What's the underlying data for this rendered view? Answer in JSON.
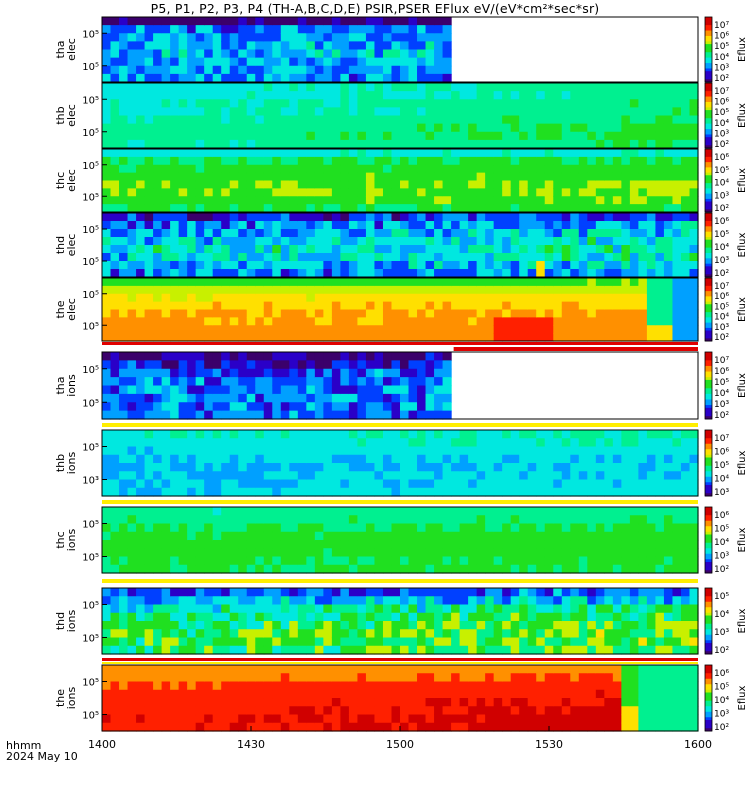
{
  "title": "P5, P1, P2, P3, P4 (TH-A,B,C,D,E) PSIR,PSER EFlux eV/(eV*cm²*sec*sr)",
  "footer": {
    "line1": "hhmm",
    "line2": "2024 May 10"
  },
  "colors": {
    "colormap": [
      "#3b006b",
      "#2a00c8",
      "#0040ff",
      "#00a0ff",
      "#00e8e0",
      "#00f090",
      "#20e020",
      "#c8f000",
      "#ffe000",
      "#ff9000",
      "#ff2000",
      "#d00000"
    ],
    "flag_red": "#e00000",
    "flag_yellow": "#ffee00"
  },
  "chart_data": {
    "type": "heatmap",
    "x_axis": {
      "ticks": [
        "1400",
        "1430",
        "1500",
        "1530",
        "1600"
      ],
      "range": [
        "1400",
        "1600"
      ],
      "xlabel": ""
    },
    "colorbar_label": "Eflux",
    "panels": [
      {
        "id": "tha-elec",
        "ylabel": [
          "tha",
          "elec"
        ],
        "yticks": [
          "10⁵",
          "10⁵"
        ],
        "cbar_ticks": [
          "10⁷",
          "10⁶",
          "10⁵",
          "10⁴",
          "10³",
          "10²"
        ],
        "data_end": 0.59,
        "bands": [
          0.05,
          0.25,
          0.3,
          0.3,
          0.32,
          0.3,
          0.28,
          0.27
        ],
        "trend": 0.02,
        "noise": 0.12
      },
      {
        "id": "thb-elec",
        "ylabel": [
          "thb",
          "elec"
        ],
        "yticks": [
          "10⁵",
          "10⁵"
        ],
        "cbar_ticks": [
          "10⁷",
          "10⁶",
          "10⁵",
          "10⁴",
          "10³",
          "10²"
        ],
        "data_end": 1,
        "bands": [
          0.38,
          0.37,
          0.4,
          0.4,
          0.42,
          0.44,
          0.45,
          0.42
        ],
        "trend": 0.08,
        "noise": 0.03
      },
      {
        "id": "thc-elec",
        "ylabel": [
          "thc",
          "elec"
        ],
        "yticks": [
          "10⁵",
          "10⁵"
        ],
        "cbar_ticks": [
          "10⁶",
          "10⁵",
          "10⁴",
          "10³",
          "10²"
        ],
        "data_end": 1,
        "bands": [
          0.38,
          0.5,
          0.52,
          0.55,
          0.56,
          0.57,
          0.55,
          0.5
        ],
        "trend": 0.02,
        "noise": 0.03
      },
      {
        "id": "thd-elec",
        "ylabel": [
          "thd",
          "elec"
        ],
        "yticks": [
          "10⁵",
          "10⁵"
        ],
        "cbar_ticks": [
          "10⁶",
          "10⁵",
          "10⁴",
          "10³",
          "10²"
        ],
        "data_end": 1,
        "bands": [
          0.15,
          0.25,
          0.3,
          0.35,
          0.38,
          0.35,
          0.3,
          0.25
        ],
        "trend": 0.06,
        "noise": 0.12
      },
      {
        "id": "the-elec",
        "ylabel": [
          "the",
          "elec"
        ],
        "yticks": [
          "10⁵",
          "10⁵"
        ],
        "cbar_ticks": [
          "10⁷",
          "10⁶",
          "10⁵",
          "10⁴",
          "10³",
          "10²"
        ],
        "data_end": 1,
        "bands": [
          0.55,
          0.62,
          0.68,
          0.72,
          0.75,
          0.76,
          0.78,
          0.77
        ],
        "trend": 0.02,
        "noise": 0.03
      },
      {
        "id": "tha-ions",
        "ylabel": [
          "tha",
          "ions"
        ],
        "yticks": [
          "10⁵",
          "10⁵"
        ],
        "cbar_ticks": [
          "10⁷",
          "10⁶",
          "10⁵",
          "10⁴",
          "10³",
          "10²"
        ],
        "data_end": 0.59,
        "bands": [
          0.05,
          0.15,
          0.22,
          0.25,
          0.26,
          0.25,
          0.24,
          0.22
        ],
        "trend": 0.02,
        "noise": 0.12
      },
      {
        "id": "thb-ions",
        "ylabel": [
          "thb",
          "ions"
        ],
        "yticks": [
          "10⁵",
          "10³"
        ],
        "cbar_ticks": [
          "10⁷",
          "10⁶",
          "10⁵",
          "10⁴",
          "10³"
        ],
        "data_end": 1,
        "bands": [
          0.4,
          0.38,
          0.35,
          0.33,
          0.32,
          0.32,
          0.33,
          0.34
        ],
        "trend": 0.03,
        "noise": 0.03
      },
      {
        "id": "thc-ions",
        "ylabel": [
          "thc",
          "ions"
        ],
        "yticks": [
          "10⁵",
          "10⁵"
        ],
        "cbar_ticks": [
          "10⁶",
          "10⁵",
          "10⁴",
          "10³",
          "10²"
        ],
        "data_end": 1,
        "bands": [
          0.44,
          0.47,
          0.5,
          0.52,
          0.53,
          0.52,
          0.51,
          0.5
        ],
        "trend": 0.02,
        "noise": 0.03
      },
      {
        "id": "thd-ions",
        "ylabel": [
          "thd",
          "ions"
        ],
        "yticks": [
          "10⁵",
          "10⁵"
        ],
        "cbar_ticks": [
          "10⁵",
          "10⁴",
          "10³",
          "10²"
        ],
        "data_end": 1,
        "bands": [
          0.2,
          0.3,
          0.4,
          0.45,
          0.5,
          0.52,
          0.52,
          0.5
        ],
        "trend": 0.05,
        "noise": 0.12
      },
      {
        "id": "the-ions",
        "ylabel": [
          "the",
          "ions"
        ],
        "yticks": [
          "10⁵",
          "10⁵"
        ],
        "cbar_ticks": [
          "10⁶",
          "10⁵",
          "10⁴",
          "10³",
          "10²"
        ],
        "data_end": 1,
        "bands": [
          0.78,
          0.8,
          0.84,
          0.87,
          0.88,
          0.89,
          0.9,
          0.9
        ],
        "trend": 0.05,
        "noise": 0.02
      }
    ]
  }
}
